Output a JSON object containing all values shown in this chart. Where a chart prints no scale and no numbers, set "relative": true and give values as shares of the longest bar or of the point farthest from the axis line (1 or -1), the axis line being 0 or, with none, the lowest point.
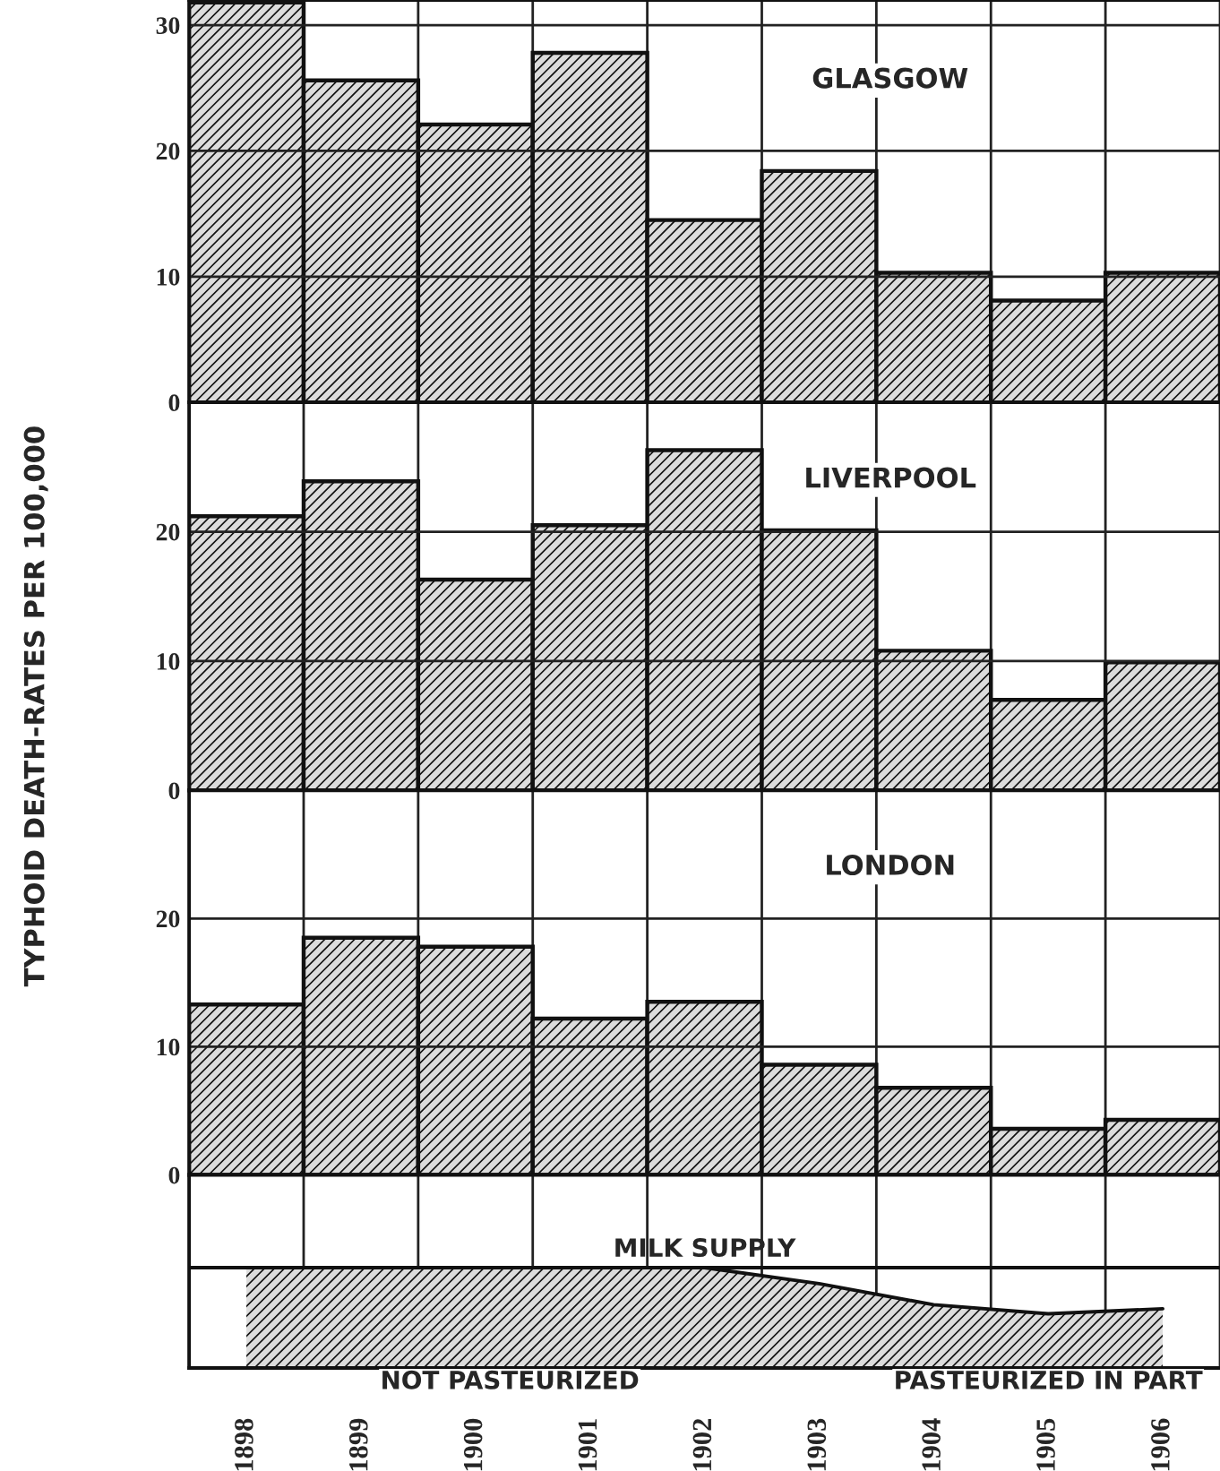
{
  "chart_data": [
    {
      "type": "bar",
      "title": "GLASGOW",
      "categories": [
        "1898",
        "1899",
        "1900",
        "1901",
        "1902",
        "1903",
        "1904",
        "1905",
        "1906"
      ],
      "values": [
        31.8,
        25.6,
        22.1,
        27.8,
        14.5,
        18.4,
        10.3,
        8.1,
        10.3
      ],
      "color": "#111111",
      "ylim": [
        0,
        32
      ],
      "yticks": [
        0,
        10,
        20,
        30
      ],
      "grid": true,
      "tick_labels": "y"
    },
    {
      "type": "bar",
      "title": "LIVERPOOL",
      "ylabel": "TYPHOID DEATH-RATES PER 100,000",
      "categories": [
        "1898",
        "1899",
        "1900",
        "1901",
        "1902",
        "1903",
        "1904",
        "1905",
        "1906"
      ],
      "values": [
        21.2,
        23.9,
        16.3,
        20.5,
        26.3,
        20.1,
        10.8,
        7.0,
        9.9
      ],
      "color": "#111111",
      "ylim": [
        0,
        30
      ],
      "yticks": [
        0,
        10,
        20
      ],
      "grid": true,
      "tick_labels": "y"
    },
    {
      "type": "bar",
      "title": "LONDON",
      "categories": [
        "1898",
        "1899",
        "1900",
        "1901",
        "1902",
        "1903",
        "1904",
        "1905",
        "1906"
      ],
      "values": [
        13.3,
        18.5,
        17.8,
        12.2,
        13.5,
        8.6,
        6.8,
        3.6,
        4.3
      ],
      "color": "#111111",
      "ylim": [
        0,
        30
      ],
      "yticks": [
        0,
        10,
        20
      ],
      "grid": true,
      "tick_labels": "y"
    },
    {
      "type": "area",
      "relative": true,
      "title": "MILK SUPPLY",
      "categories": [
        "1898",
        "1899",
        "1900",
        "1901",
        "1902",
        "1903",
        "1904",
        "1905",
        "1906"
      ],
      "series": [
        {
          "color": "#dcdcdc",
          "values": [
            1.0,
            1.0,
            1.0,
            1.0,
            1.0,
            0.84,
            0.63,
            0.54,
            0.59
          ]
        }
      ],
      "ref_lines": [
        {
          "axis": "y",
          "value": 1.0
        }
      ],
      "annotations": [
        "NOT PASTEURIZED",
        "PASTEURIZED IN PART"
      ],
      "tick_labels": "x",
      "grid": "x"
    }
  ]
}
